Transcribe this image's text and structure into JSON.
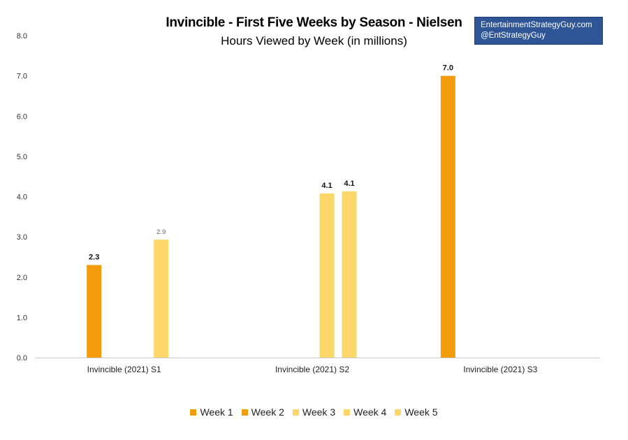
{
  "chart_data": {
    "type": "bar",
    "title": "Invincible - First Five Weeks by Season - Nielsen",
    "subtitle": "Hours Viewed by Week (in millions)",
    "categories": [
      "Invincible (2021) S1",
      "Invincible (2021) S2",
      "Invincible (2021) S3"
    ],
    "series": [
      {
        "name": "Week 1",
        "color": "#f39c0b",
        "values": [
          null,
          null,
          7.0
        ]
      },
      {
        "name": "Week 2",
        "color": "#f39c0b",
        "values": [
          2.3,
          null,
          null
        ]
      },
      {
        "name": "Week 3",
        "color": "#fdd76a",
        "values": [
          null,
          null,
          null
        ]
      },
      {
        "name": "Week 4",
        "color": "#fdd76a",
        "values": [
          null,
          4.1,
          null
        ]
      },
      {
        "name": "Week 5",
        "color": "#fdd76a",
        "values": [
          2.9,
          4.1,
          null
        ]
      }
    ],
    "series_values_precise": [
      [
        null,
        null,
        7.0
      ],
      [
        2.3,
        null,
        null
      ],
      [
        null,
        null,
        null
      ],
      [
        null,
        4.08,
        null
      ],
      [
        2.93,
        4.13,
        null
      ]
    ],
    "data_labels": [
      [
        null,
        null,
        "7.0"
      ],
      [
        "2.3",
        null,
        null
      ],
      [
        null,
        null,
        null
      ],
      [
        null,
        "4.1",
        null
      ],
      [
        "2.9",
        "4.1",
        null
      ]
    ],
    "ylim": [
      0,
      8
    ],
    "yticks": [
      "0.0",
      "1.0",
      "2.0",
      "3.0",
      "4.0",
      "5.0",
      "6.0",
      "7.0",
      "8.0"
    ],
    "grid": false,
    "legend_position": "bottom"
  },
  "brand": {
    "line1": "EntertainmentStrategyGuy.com",
    "line2": "@EntStrategyGuy"
  }
}
